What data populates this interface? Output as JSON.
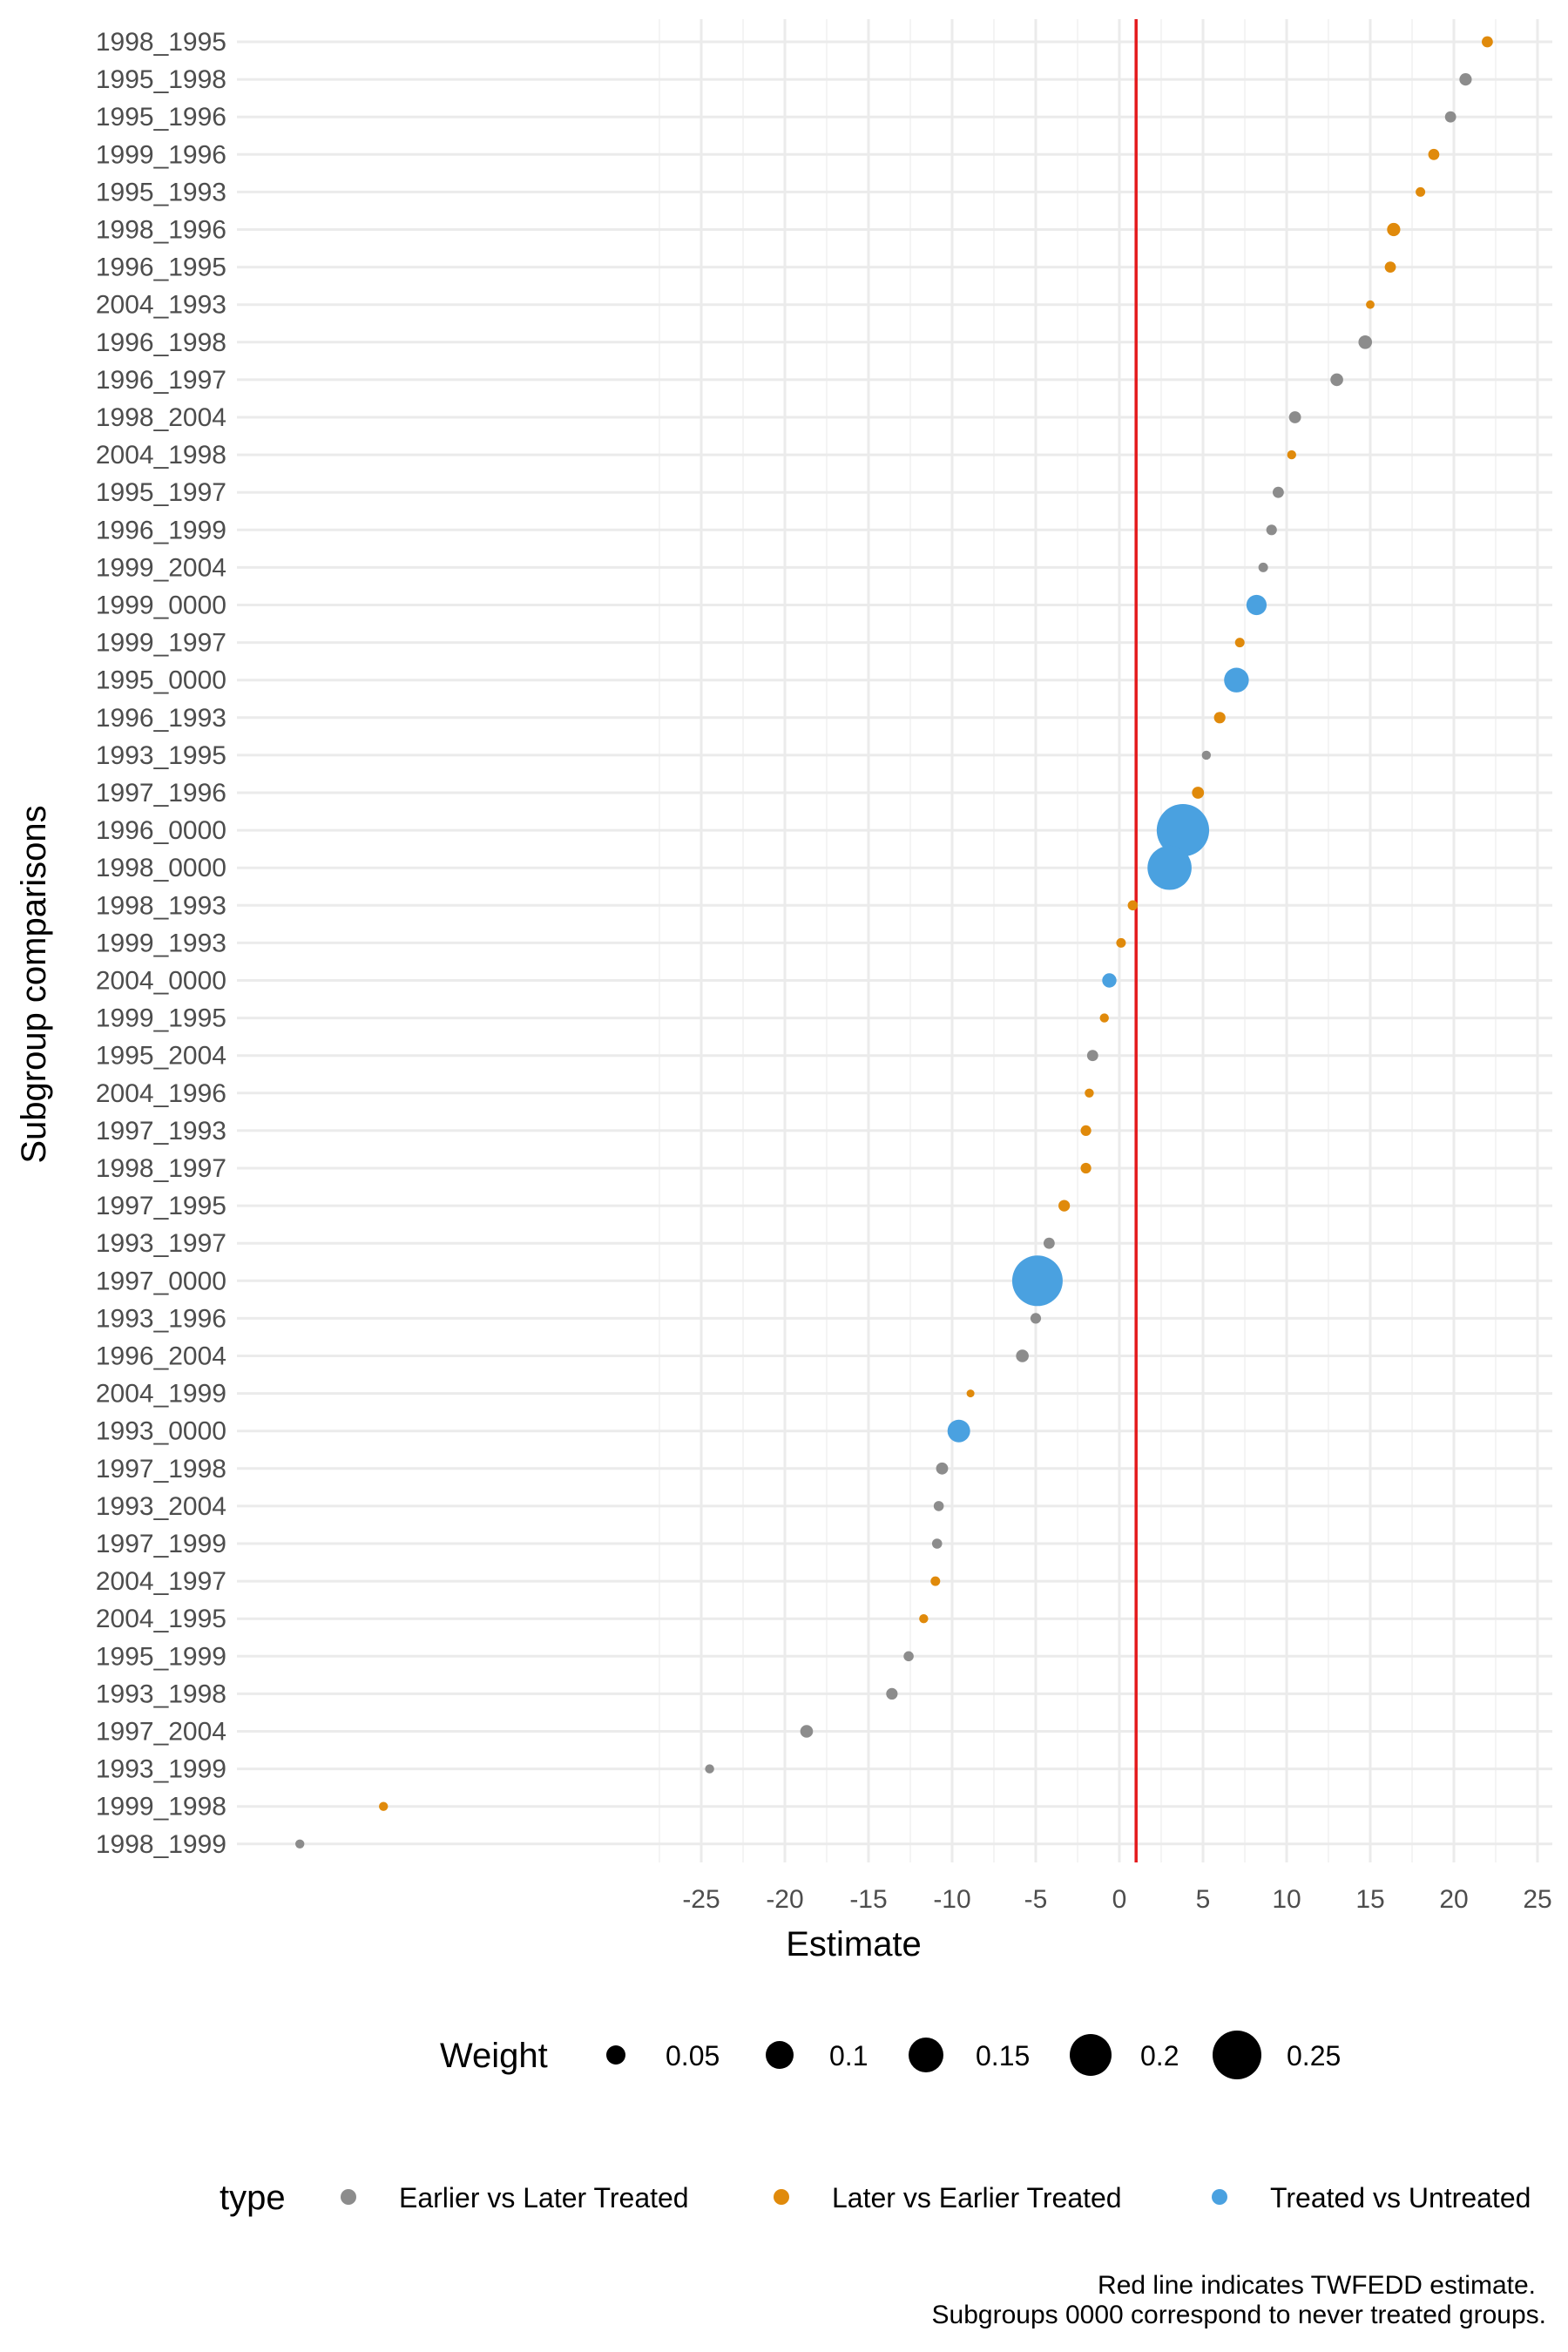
{
  "chart_data": {
    "type": "scatter",
    "title": "",
    "xlabel": "Estimate",
    "ylabel": "Subgroup comparisons",
    "x_ticks": [
      -25,
      -20,
      -15,
      -10,
      -5,
      0,
      5,
      10,
      15,
      20,
      25
    ],
    "xlim": [
      -51,
      27
    ],
    "reference_line": {
      "x": 1,
      "color": "#e41a1c",
      "meaning": "TWFEDD estimate"
    },
    "colors": {
      "Earlier vs Later Treated": "#8c8c8c",
      "Later vs Earlier Treated": "#e08a0b",
      "Treated vs Untreated": "#4aa1e0",
      "reference_line": "#e41a1c",
      "grid": "#ebebeb"
    },
    "categories": [
      "1998_1995",
      "1995_1998",
      "1995_1996",
      "1999_1996",
      "1995_1993",
      "1998_1996",
      "1996_1995",
      "2004_1993",
      "1996_1998",
      "1996_1997",
      "1998_2004",
      "2004_1998",
      "1995_1997",
      "1996_1999",
      "1999_2004",
      "1999_0000",
      "1999_1997",
      "1995_0000",
      "1996_1993",
      "1993_1995",
      "1997_1996",
      "1996_0000",
      "1998_0000",
      "1998_1993",
      "1999_1993",
      "2004_0000",
      "1999_1995",
      "1995_2004",
      "2004_1996",
      "1997_1993",
      "1998_1997",
      "1997_1995",
      "1993_1997",
      "1997_0000",
      "1993_1996",
      "1996_2004",
      "2004_1999",
      "1993_0000",
      "1997_1998",
      "1993_2004",
      "1997_1999",
      "2004_1997",
      "2004_1995",
      "1995_1999",
      "1993_1998",
      "1997_2004",
      "1993_1999",
      "1999_1998",
      "1998_1999"
    ],
    "points": [
      {
        "label": "1998_1995",
        "estimate": 22.0,
        "type": "Later vs Earlier Treated",
        "weight": 0.012
      },
      {
        "label": "1995_1998",
        "estimate": 20.7,
        "type": "Earlier vs Later Treated",
        "weight": 0.015
      },
      {
        "label": "1995_1996",
        "estimate": 19.8,
        "type": "Earlier vs Later Treated",
        "weight": 0.012
      },
      {
        "label": "1999_1996",
        "estimate": 18.8,
        "type": "Later vs Earlier Treated",
        "weight": 0.012
      },
      {
        "label": "1995_1993",
        "estimate": 18.0,
        "type": "Later vs Earlier Treated",
        "weight": 0.009
      },
      {
        "label": "1998_1996",
        "estimate": 16.4,
        "type": "Later vs Earlier Treated",
        "weight": 0.017
      },
      {
        "label": "1996_1995",
        "estimate": 16.2,
        "type": "Later vs Earlier Treated",
        "weight": 0.012
      },
      {
        "label": "2004_1993",
        "estimate": 15.0,
        "type": "Later vs Earlier Treated",
        "weight": 0.007
      },
      {
        "label": "1996_1998",
        "estimate": 14.7,
        "type": "Earlier vs Later Treated",
        "weight": 0.018
      },
      {
        "label": "1996_1997",
        "estimate": 13.0,
        "type": "Earlier vs Later Treated",
        "weight": 0.016
      },
      {
        "label": "1998_2004",
        "estimate": 10.5,
        "type": "Earlier vs Later Treated",
        "weight": 0.014
      },
      {
        "label": "2004_1998",
        "estimate": 10.3,
        "type": "Later vs Earlier Treated",
        "weight": 0.008
      },
      {
        "label": "1995_1997",
        "estimate": 9.5,
        "type": "Earlier vs Later Treated",
        "weight": 0.012
      },
      {
        "label": "1996_1999",
        "estimate": 9.1,
        "type": "Earlier vs Later Treated",
        "weight": 0.011
      },
      {
        "label": "1999_2004",
        "estimate": 8.6,
        "type": "Earlier vs Later Treated",
        "weight": 0.009
      },
      {
        "label": "1999_0000",
        "estimate": 8.2,
        "type": "Treated vs Untreated",
        "weight": 0.04
      },
      {
        "label": "1999_1997",
        "estimate": 7.2,
        "type": "Later vs Earlier Treated",
        "weight": 0.009
      },
      {
        "label": "1995_0000",
        "estimate": 7.0,
        "type": "Treated vs Untreated",
        "weight": 0.06
      },
      {
        "label": "1996_1993",
        "estimate": 6.0,
        "type": "Later vs Earlier Treated",
        "weight": 0.013
      },
      {
        "label": "1993_1995",
        "estimate": 5.2,
        "type": "Earlier vs Later Treated",
        "weight": 0.008
      },
      {
        "label": "1997_1996",
        "estimate": 4.7,
        "type": "Later vs Earlier Treated",
        "weight": 0.014
      },
      {
        "label": "1996_0000",
        "estimate": 3.8,
        "type": "Treated vs Untreated",
        "weight": 0.27
      },
      {
        "label": "1998_0000",
        "estimate": 3.0,
        "type": "Treated vs Untreated",
        "weight": 0.19
      },
      {
        "label": "1998_1993",
        "estimate": 0.8,
        "type": "Later vs Earlier Treated",
        "weight": 0.01
      },
      {
        "label": "1999_1993",
        "estimate": 0.1,
        "type": "Later vs Earlier Treated",
        "weight": 0.009
      },
      {
        "label": "2004_0000",
        "estimate": -0.6,
        "type": "Treated vs Untreated",
        "weight": 0.02
      },
      {
        "label": "1999_1995",
        "estimate": -0.9,
        "type": "Later vs Earlier Treated",
        "weight": 0.008
      },
      {
        "label": "1995_2004",
        "estimate": -1.6,
        "type": "Earlier vs Later Treated",
        "weight": 0.012
      },
      {
        "label": "2004_1996",
        "estimate": -1.8,
        "type": "Later vs Earlier Treated",
        "weight": 0.008
      },
      {
        "label": "1997_1993",
        "estimate": -2.0,
        "type": "Later vs Earlier Treated",
        "weight": 0.011
      },
      {
        "label": "1998_1997",
        "estimate": -2.0,
        "type": "Later vs Earlier Treated",
        "weight": 0.011
      },
      {
        "label": "1997_1995",
        "estimate": -3.3,
        "type": "Later vs Earlier Treated",
        "weight": 0.013
      },
      {
        "label": "1993_1997",
        "estimate": -4.2,
        "type": "Earlier vs Later Treated",
        "weight": 0.012
      },
      {
        "label": "1997_0000",
        "estimate": -4.9,
        "type": "Treated vs Untreated",
        "weight": 0.25
      },
      {
        "label": "1993_1996",
        "estimate": -5.0,
        "type": "Earlier vs Later Treated",
        "weight": 0.011
      },
      {
        "label": "1996_2004",
        "estimate": -5.8,
        "type": "Earlier vs Later Treated",
        "weight": 0.016
      },
      {
        "label": "2004_1999",
        "estimate": -8.9,
        "type": "Later vs Earlier Treated",
        "weight": 0.006
      },
      {
        "label": "1993_0000",
        "estimate": -9.6,
        "type": "Treated vs Untreated",
        "weight": 0.05
      },
      {
        "label": "1997_1998",
        "estimate": -10.6,
        "type": "Earlier vs Later Treated",
        "weight": 0.014
      },
      {
        "label": "1993_2004",
        "estimate": -10.8,
        "type": "Earlier vs Later Treated",
        "weight": 0.01
      },
      {
        "label": "1997_1999",
        "estimate": -10.9,
        "type": "Earlier vs Later Treated",
        "weight": 0.01
      },
      {
        "label": "2004_1997",
        "estimate": -11.0,
        "type": "Later vs Earlier Treated",
        "weight": 0.009
      },
      {
        "label": "2004_1995",
        "estimate": -11.7,
        "type": "Later vs Earlier Treated",
        "weight": 0.008
      },
      {
        "label": "1995_1999",
        "estimate": -12.6,
        "type": "Earlier vs Later Treated",
        "weight": 0.01
      },
      {
        "label": "1993_1998",
        "estimate": -13.6,
        "type": "Earlier vs Later Treated",
        "weight": 0.013
      },
      {
        "label": "1997_2004",
        "estimate": -18.7,
        "type": "Earlier vs Later Treated",
        "weight": 0.016
      },
      {
        "label": "1993_1999",
        "estimate": -24.5,
        "type": "Earlier vs Later Treated",
        "weight": 0.008
      },
      {
        "label": "1999_1998",
        "estimate": -44.0,
        "type": "Later vs Earlier Treated",
        "weight": 0.008
      },
      {
        "label": "1998_1999",
        "estimate": -49.0,
        "type": "Earlier vs Later Treated",
        "weight": 0.008
      }
    ],
    "legend_weight": {
      "title": "Weight",
      "values": [
        "0.05",
        "0.1",
        "0.15",
        "0.2",
        "0.25"
      ]
    },
    "legend_type": {
      "title": "type",
      "items": [
        "Earlier vs Later Treated",
        "Later vs Earlier Treated",
        "Treated vs Untreated"
      ]
    },
    "caption": [
      "Red line indicates TWFEDD estimate.",
      "Subgroups 0000 correspond to never treated groups."
    ]
  }
}
